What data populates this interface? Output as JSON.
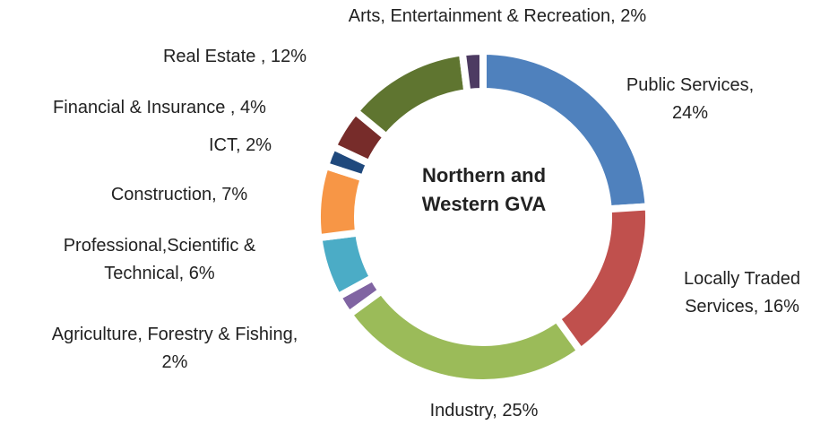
{
  "chart_data": {
    "type": "donut",
    "title": "Northern and Western GVA",
    "categories": [
      "Public Services,",
      "Locally Traded Services,",
      "Industry,",
      "Agriculture, Forestry & Fishing,",
      "Professional,Scientific & Technical,",
      "Construction,",
      "ICT,",
      "Financial & Insurance ,",
      "Real Estate ,",
      "Arts, Entertainment & Recreation,"
    ],
    "values": [
      24,
      16,
      25,
      2,
      6,
      7,
      2,
      4,
      12,
      2
    ],
    "value_labels": [
      "24%",
      "16%",
      "25%",
      "2%",
      "6%",
      "7%",
      "2%",
      "4%",
      "12%",
      "2%"
    ],
    "colors": [
      "#4f81bd",
      "#c0504d",
      "#9bbb59",
      "#8064a2",
      "#4bacc6",
      "#f79646",
      "#1f497d",
      "#772c2a",
      "#5f7530",
      "#4d3b62"
    ]
  }
}
